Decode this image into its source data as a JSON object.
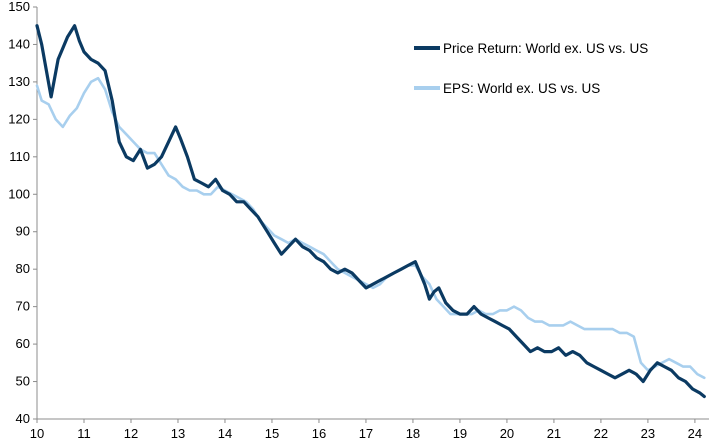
{
  "chart_data": {
    "type": "line",
    "title": "",
    "xlabel": "",
    "ylabel": "",
    "xlim": [
      10,
      24.3
    ],
    "ylim": [
      40,
      150
    ],
    "x_ticks": [
      10,
      11,
      12,
      13,
      14,
      15,
      16,
      17,
      18,
      19,
      20,
      21,
      22,
      23,
      24
    ],
    "x_tick_labels": [
      "10",
      "11",
      "12",
      "13",
      "14",
      "15",
      "16",
      "17",
      "18",
      "19",
      "20",
      "21",
      "22",
      "23",
      "24"
    ],
    "y_ticks": [
      40,
      50,
      60,
      70,
      80,
      90,
      100,
      110,
      120,
      130,
      140,
      150
    ],
    "y_tick_labels": [
      "40",
      "50",
      "60",
      "70",
      "80",
      "90",
      "100",
      "110",
      "120",
      "130",
      "140",
      "150"
    ],
    "grid": false,
    "legend": "top-right",
    "series": [
      {
        "name": "Price Return: World ex. US vs. US",
        "color": "#0b3a62",
        "x": [
          10.0,
          10.1,
          10.2,
          10.3,
          10.45,
          10.55,
          10.65,
          10.8,
          10.9,
          11.0,
          11.15,
          11.3,
          11.45,
          11.6,
          11.75,
          11.9,
          12.05,
          12.2,
          12.35,
          12.5,
          12.65,
          12.8,
          12.95,
          13.05,
          13.2,
          13.35,
          13.5,
          13.65,
          13.8,
          13.95,
          14.1,
          14.25,
          14.4,
          14.55,
          14.7,
          14.8,
          14.9,
          15.05,
          15.2,
          15.35,
          15.5,
          15.65,
          15.8,
          15.95,
          16.1,
          16.25,
          16.4,
          16.55,
          16.7,
          16.85,
          17.0,
          17.15,
          17.3,
          17.45,
          17.6,
          17.75,
          17.9,
          18.05,
          18.15,
          18.25,
          18.35,
          18.45,
          18.55,
          18.7,
          18.85,
          19.0,
          19.15,
          19.3,
          19.45,
          19.6,
          19.75,
          19.9,
          20.05,
          20.2,
          20.35,
          20.5,
          20.65,
          20.8,
          20.95,
          21.1,
          21.25,
          21.4,
          21.55,
          21.7,
          21.85,
          22.0,
          22.15,
          22.3,
          22.45,
          22.6,
          22.75,
          22.9,
          23.05,
          23.2,
          23.35,
          23.5,
          23.65,
          23.8,
          23.95,
          24.1,
          24.2
        ],
        "y": [
          145,
          140,
          133,
          126,
          136,
          139,
          142,
          145,
          141,
          138,
          136,
          135,
          133,
          125,
          114,
          110,
          109,
          112,
          107,
          108,
          110,
          114,
          118,
          115,
          110,
          104,
          103,
          102,
          104,
          101,
          100,
          98,
          98,
          96,
          94,
          92,
          90,
          87,
          84,
          86,
          88,
          86,
          85,
          83,
          82,
          80,
          79,
          80,
          79,
          77,
          75,
          76,
          77,
          78,
          79,
          80,
          81,
          82,
          79,
          76,
          72,
          74,
          75,
          71,
          69,
          68,
          68,
          70,
          68,
          67,
          66,
          65,
          64,
          62,
          60,
          58,
          59,
          58,
          58,
          59,
          57,
          58,
          57,
          55,
          54,
          53,
          52,
          51,
          52,
          53,
          52,
          50,
          53,
          55,
          54,
          53,
          51,
          50,
          48,
          47,
          46
        ]
      },
      {
        "name": "EPS: World ex. US vs. US",
        "color": "#a8cfee",
        "x": [
          10.0,
          10.1,
          10.25,
          10.4,
          10.55,
          10.7,
          10.85,
          11.0,
          11.15,
          11.3,
          11.45,
          11.6,
          11.75,
          11.9,
          12.05,
          12.2,
          12.35,
          12.5,
          12.65,
          12.8,
          12.95,
          13.1,
          13.25,
          13.4,
          13.55,
          13.7,
          13.85,
          14.0,
          14.15,
          14.3,
          14.45,
          14.6,
          14.75,
          14.9,
          15.05,
          15.2,
          15.35,
          15.5,
          15.65,
          15.8,
          15.95,
          16.1,
          16.25,
          16.4,
          16.55,
          16.7,
          16.85,
          17.0,
          17.15,
          17.3,
          17.45,
          17.6,
          17.75,
          17.9,
          18.05,
          18.2,
          18.35,
          18.5,
          18.65,
          18.8,
          18.95,
          19.1,
          19.25,
          19.4,
          19.55,
          19.7,
          19.85,
          20.0,
          20.15,
          20.3,
          20.45,
          20.6,
          20.75,
          20.9,
          21.05,
          21.2,
          21.35,
          21.5,
          21.65,
          21.8,
          21.95,
          22.1,
          22.25,
          22.4,
          22.55,
          22.7,
          22.85,
          23.0,
          23.15,
          23.3,
          23.45,
          23.6,
          23.75,
          23.9,
          24.05,
          24.2
        ],
        "y": [
          129,
          125,
          124,
          120,
          118,
          121,
          123,
          127,
          130,
          131,
          128,
          122,
          118,
          116,
          114,
          112,
          111,
          111,
          108,
          105,
          104,
          102,
          101,
          101,
          100,
          100,
          102,
          101,
          100,
          99,
          98,
          96,
          93,
          91,
          89,
          88,
          87,
          88,
          87,
          86,
          85,
          84,
          82,
          80,
          79,
          78,
          77,
          76,
          75,
          76,
          78,
          79,
          80,
          81,
          81,
          78,
          76,
          72,
          70,
          68,
          68,
          68,
          68,
          69,
          68,
          68,
          69,
          69,
          70,
          69,
          67,
          66,
          66,
          65,
          65,
          65,
          66,
          65,
          64,
          64,
          64,
          64,
          64,
          63,
          63,
          62,
          55,
          53,
          54,
          55,
          56,
          55,
          54,
          54,
          52,
          51
        ]
      }
    ]
  }
}
